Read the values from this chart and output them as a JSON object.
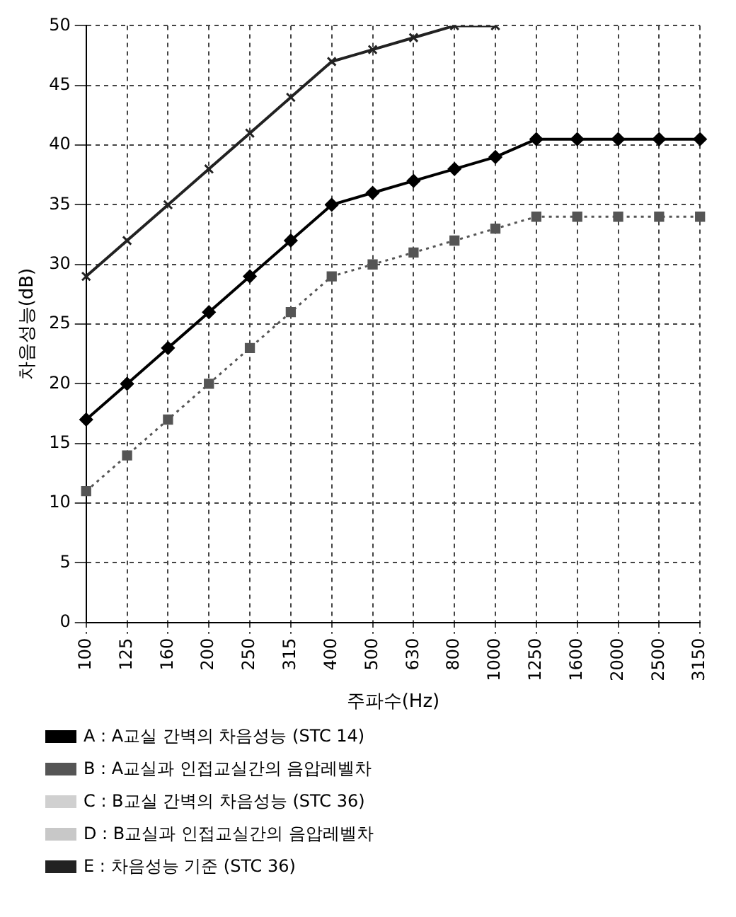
{
  "chart_data": {
    "type": "line",
    "xlabel": "주파수(Hz)",
    "ylabel": "차음성능(dB)",
    "categories": [
      "100",
      "125",
      "160",
      "200",
      "250",
      "315",
      "400",
      "500",
      "630",
      "800",
      "1000",
      "1250",
      "1600",
      "2000",
      "2500",
      "3150"
    ],
    "ylim": [
      0,
      50
    ],
    "yticks": [
      0,
      5,
      10,
      15,
      20,
      25,
      30,
      35,
      40,
      45,
      50
    ],
    "grid": true,
    "legend": "bottom",
    "series": [
      {
        "name": "A : A교실 간벽의 차음성능 (STC 14)",
        "color": "#000000",
        "marker": "diamond",
        "line_style": "solid",
        "values": [
          17,
          20,
          23,
          26,
          29,
          32,
          35,
          36,
          37,
          38,
          39,
          40.5,
          40.5,
          40.5,
          40.5,
          40.5
        ]
      },
      {
        "name": "B : A교실과 인접교실간의 음압레벨차",
        "color": "#555555",
        "marker": "square",
        "line_style": "dotted",
        "values": [
          11,
          14,
          17,
          20,
          23,
          26,
          29,
          30,
          31,
          32,
          33,
          34,
          34,
          34,
          34,
          34
        ]
      },
      {
        "name": "C : B교실 간벽의 차음성능 (STC 36)",
        "color": "#d0d0d0",
        "marker": "none",
        "line_style": "solid",
        "values": [
          null,
          null,
          null,
          null,
          null,
          null,
          null,
          null,
          null,
          null,
          null,
          null,
          null,
          null,
          null,
          null
        ]
      },
      {
        "name": "D : B교실과 인접교실간의 음압레벨차",
        "color": "#c8c8c8",
        "marker": "none",
        "line_style": "dotted",
        "values": [
          null,
          null,
          null,
          null,
          null,
          null,
          null,
          null,
          null,
          null,
          null,
          null,
          null,
          null,
          null,
          null
        ]
      },
      {
        "name": "E : 차음성능 기준 (STC 36)",
        "color": "#222222",
        "marker": "cross",
        "line_style": "solid",
        "values": [
          29,
          32,
          35,
          38,
          41,
          44,
          47,
          48,
          49,
          50,
          50,
          null,
          null,
          null,
          null,
          null
        ]
      }
    ]
  }
}
